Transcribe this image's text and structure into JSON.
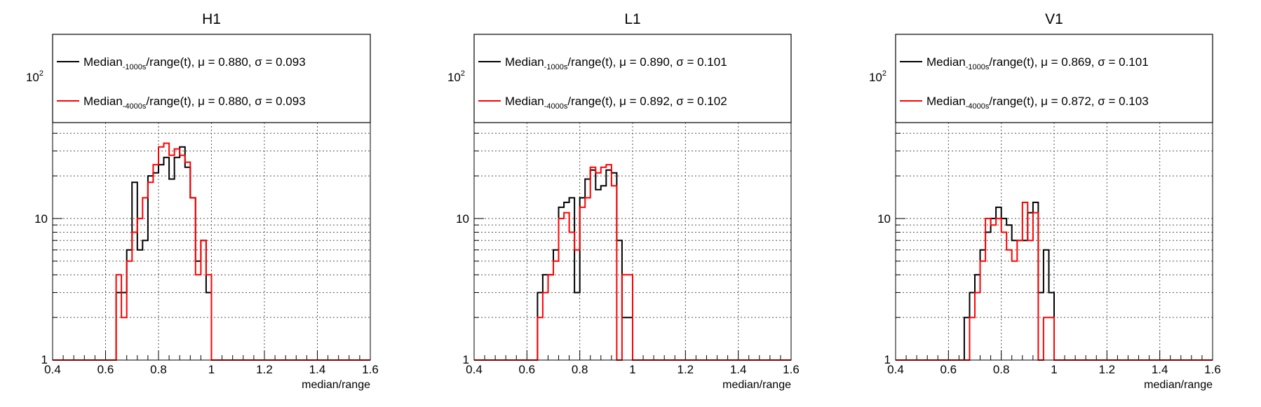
{
  "chart_data": [
    {
      "type": "histogram-step",
      "title": "H1",
      "xlabel": "median/range",
      "xlim": [
        0.4,
        1.6
      ],
      "ylim": [
        1,
        200
      ],
      "yscale": "log",
      "bin_width": 0.02,
      "grid": true,
      "legend_position": "top",
      "xticks": [
        "0.4",
        "0.6",
        "0.8",
        "1",
        "1.2",
        "1.4",
        "1.6"
      ],
      "yticks": [
        {
          "label": "1"
        },
        {
          "label": "10"
        },
        {
          "label": "10",
          "sup": "2"
        }
      ],
      "series": [
        {
          "name_prefix": "Median",
          "name_sub": "-1000s",
          "name_suffix": "/range(t), μ = 0.880, σ = 0.093",
          "color": "#000000",
          "bin_start": 0.64,
          "values": [
            3,
            3,
            6,
            18,
            6,
            7,
            20,
            21,
            24,
            27,
            19,
            27,
            32,
            23,
            14,
            5,
            7,
            3
          ]
        },
        {
          "name_prefix": "Median",
          "name_sub": "-4000s",
          "name_suffix": "/range(t), μ = 0.880, σ = 0.093",
          "color": "#ff0000",
          "bin_start": 0.64,
          "values": [
            4,
            2,
            5,
            8,
            10,
            14,
            18,
            24,
            32,
            34,
            28,
            31,
            28,
            25,
            14,
            4,
            7,
            4
          ]
        }
      ]
    },
    {
      "type": "histogram-step",
      "title": "L1",
      "xlabel": "median/range",
      "xlim": [
        0.4,
        1.6
      ],
      "ylim": [
        1,
        200
      ],
      "yscale": "log",
      "bin_width": 0.02,
      "grid": true,
      "legend_position": "top",
      "xticks": [
        "0.4",
        "0.6",
        "0.8",
        "1",
        "1.2",
        "1.4",
        "1.6"
      ],
      "yticks": [
        {
          "label": "1"
        },
        {
          "label": "10"
        },
        {
          "label": "10",
          "sup": "2"
        }
      ],
      "series": [
        {
          "name_prefix": "Median",
          "name_sub": "-1000s",
          "name_suffix": "/range(t), μ = 0.890, σ = 0.101",
          "color": "#000000",
          "bin_start": 0.64,
          "values": [
            3,
            4,
            4,
            6,
            12,
            13,
            14,
            3,
            14,
            19,
            22,
            16,
            17,
            22,
            21,
            7,
            2,
            2
          ]
        },
        {
          "name_prefix": "Median",
          "name_sub": "-4000s",
          "name_suffix": "/range(t), μ = 0.892, σ = 0.102",
          "color": "#ff0000",
          "bin_start": 0.64,
          "values": [
            2,
            3,
            4,
            5,
            10,
            11,
            8,
            6,
            12,
            14,
            23,
            21,
            23,
            24,
            17,
            1,
            4,
            4
          ]
        }
      ]
    },
    {
      "type": "histogram-step",
      "title": "V1",
      "xlabel": "median/range",
      "xlim": [
        0.4,
        1.6
      ],
      "ylim": [
        1,
        200
      ],
      "yscale": "log",
      "bin_width": 0.02,
      "grid": true,
      "legend_position": "top",
      "xticks": [
        "0.4",
        "0.6",
        "0.8",
        "1",
        "1.2",
        "1.4",
        "1.6"
      ],
      "yticks": [
        {
          "label": "1"
        },
        {
          "label": "10"
        },
        {
          "label": "10",
          "sup": "2"
        }
      ],
      "series": [
        {
          "name_prefix": "Median",
          "name_sub": "-1000s",
          "name_suffix": "/range(t), μ = 0.869, σ = 0.101",
          "color": "#000000",
          "bin_start": 0.66,
          "values": [
            2,
            3,
            4,
            6,
            8,
            10,
            12,
            10,
            9,
            7,
            7,
            7,
            11,
            13,
            3,
            6,
            3
          ]
        },
        {
          "name_prefix": "Median",
          "name_sub": "-4000s",
          "name_suffix": "/range(t), μ = 0.872, σ = 0.103",
          "color": "#ff0000",
          "bin_start": 0.66,
          "values": [
            1,
            2,
            3,
            5,
            10,
            9,
            10,
            8,
            6,
            5,
            7,
            13,
            7,
            11,
            1,
            2,
            2
          ]
        }
      ]
    }
  ]
}
